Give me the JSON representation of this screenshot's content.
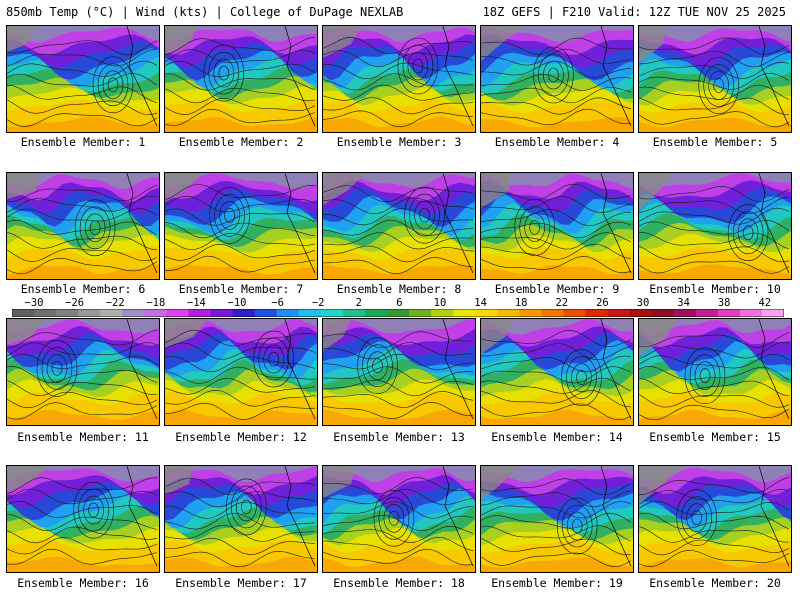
{
  "header": {
    "title_left": "850mb Temp (°C) | Wind (kts) | College of DuPage NEXLAB",
    "title_right": "18Z GEFS | F210 Valid: 12Z TUE NOV 25 2025"
  },
  "colorbar": {
    "tick_labels": [
      "−30",
      "−26",
      "−22",
      "−18",
      "−14",
      "−10",
      "−6",
      "−2",
      "2",
      "6",
      "10",
      "14",
      "18",
      "22",
      "26",
      "30",
      "34",
      "38",
      "42"
    ],
    "colors": [
      "#606060",
      "#707070",
      "#808080",
      "#989898",
      "#b0b0b0",
      "#a090c8",
      "#c070e0",
      "#e040f0",
      "#b020e0",
      "#7818d8",
      "#3020c8",
      "#2050e0",
      "#2090f0",
      "#20c0f0",
      "#20d8c8",
      "#20c090",
      "#18a858",
      "#389830",
      "#70b020",
      "#b0d010",
      "#e8e800",
      "#f8d800",
      "#f8b800",
      "#f89800",
      "#f07800",
      "#e85000",
      "#e02800",
      "#c81818",
      "#a81010",
      "#901020",
      "#a01060",
      "#c02090",
      "#e040c0",
      "#f070e0",
      "#f8a0f0"
    ]
  },
  "panels": [
    {
      "label": "Ensemble Member: 1"
    },
    {
      "label": "Ensemble Member: 2"
    },
    {
      "label": "Ensemble Member: 3"
    },
    {
      "label": "Ensemble Member: 4"
    },
    {
      "label": "Ensemble Member: 5"
    },
    {
      "label": "Ensemble Member: 6"
    },
    {
      "label": "Ensemble Member: 7"
    },
    {
      "label": "Ensemble Member: 8"
    },
    {
      "label": "Ensemble Member: 9"
    },
    {
      "label": "Ensemble Member: 10"
    },
    {
      "label": "Ensemble Member: 11"
    },
    {
      "label": "Ensemble Member: 12"
    },
    {
      "label": "Ensemble Member: 13"
    },
    {
      "label": "Ensemble Member: 14"
    },
    {
      "label": "Ensemble Member: 15"
    },
    {
      "label": "Ensemble Member: 16"
    },
    {
      "label": "Ensemble Member: 17"
    },
    {
      "label": "Ensemble Member: 18"
    },
    {
      "label": "Ensemble Member: 19"
    },
    {
      "label": "Ensemble Member: 20"
    }
  ]
}
